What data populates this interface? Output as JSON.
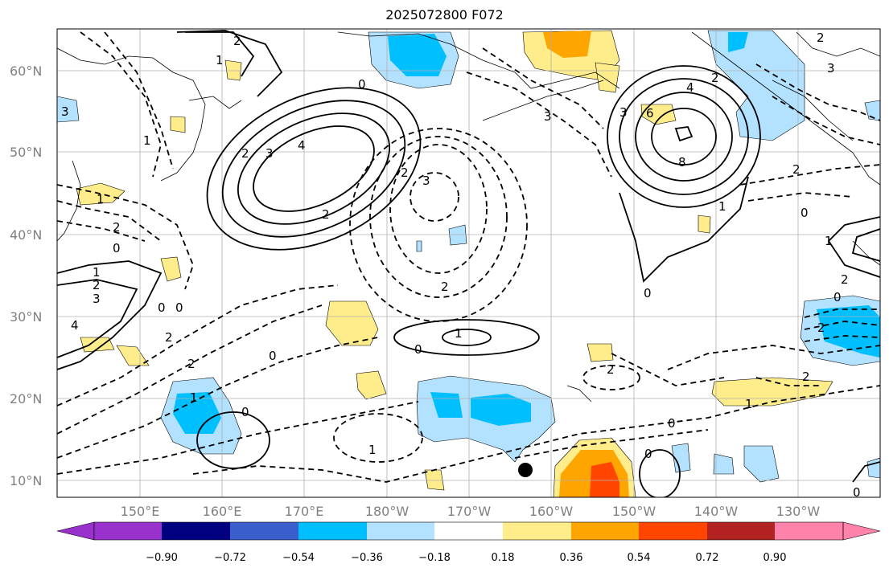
{
  "title": "2025072800 F072",
  "lat_labels": [
    "60°N",
    "50°N",
    "40°N",
    "30°N",
    "20°N",
    "10°N"
  ],
  "lon_labels": [
    "150°E",
    "160°E",
    "170°E",
    "180°W",
    "170°W",
    "160°W",
    "150°W",
    "140°W",
    "130°W"
  ],
  "colorbar": {
    "ticks": [
      "−0.90",
      "−0.72",
      "−0.54",
      "−0.36",
      "−0.18",
      "0.18",
      "0.36",
      "0.54",
      "0.72",
      "0.90"
    ],
    "colors": [
      "#9932cc",
      "#000080",
      "#3a5fcd",
      "#00bfff",
      "#b2e2ff",
      "#ffffff",
      "#ffec8b",
      "#ffa500",
      "#ff4500",
      "#b22222",
      "#ff82ab"
    ]
  },
  "contour_labels": [
    "2",
    "2",
    "3",
    "4",
    "2",
    "0",
    "3",
    "3",
    "2",
    "2",
    "4",
    "8",
    "6",
    "3",
    "2",
    "1",
    "2",
    "0",
    "1",
    "2",
    "3",
    "4",
    "0",
    "0",
    "2",
    "1",
    "0",
    "2",
    "0",
    "1",
    "1",
    "0",
    "0",
    "2",
    "0",
    "1",
    "0",
    "0",
    "2",
    "1",
    "2",
    "0",
    "2",
    "2",
    "3",
    "1",
    "1",
    "1",
    "0",
    "2",
    "3"
  ],
  "marker": "station-dot"
}
